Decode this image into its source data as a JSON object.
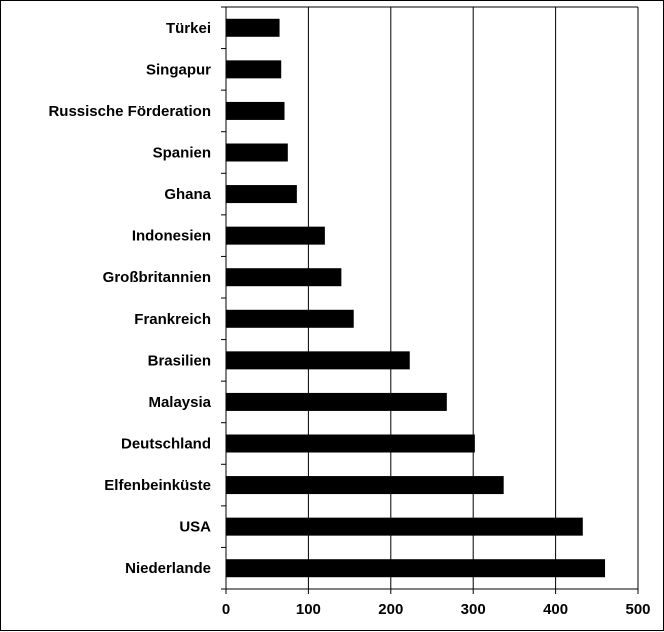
{
  "chart_data": {
    "type": "bar",
    "orientation": "horizontal",
    "categories": [
      "Türkei",
      "Singapur",
      "Russische Förderation",
      "Spanien",
      "Ghana",
      "Indonesien",
      "Großbritannien",
      "Frankreich",
      "Brasilien",
      "Malaysia",
      "Deutschland",
      "Elfenbeinküste",
      "USA",
      "Niederlande"
    ],
    "values": [
      65,
      67,
      71,
      75,
      86,
      120,
      140,
      155,
      223,
      268,
      302,
      337,
      433,
      460
    ],
    "xlim": [
      0,
      500
    ],
    "xticks": [
      "0",
      "100",
      "200",
      "300",
      "400",
      "500"
    ],
    "title": "",
    "xlabel": "",
    "ylabel": "",
    "grid": "vertical",
    "legend": "none",
    "colors": {
      "bar": "#000000",
      "grid": "#000000",
      "background": "#ffffff"
    }
  }
}
